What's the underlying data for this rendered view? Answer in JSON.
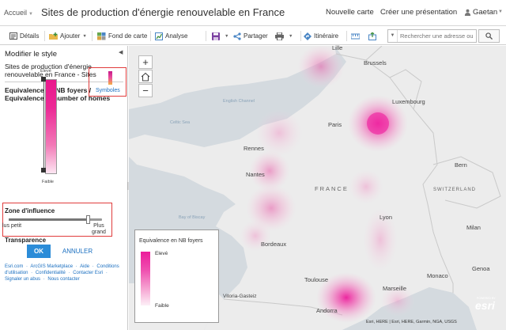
{
  "header": {
    "home_label": "Accueil",
    "title": "Sites de production d'énergie renouvelable en France",
    "new_map": "Nouvelle carte",
    "new_presentation": "Créer une présentation",
    "user": "Gaetan"
  },
  "toolbar": {
    "details": "Détails",
    "add": "Ajouter",
    "basemap": "Fond de carte",
    "analysis": "Analyse",
    "share": "Partager",
    "directions": "Itinéraire",
    "search_placeholder": "Rechercher une adresse ou"
  },
  "panel": {
    "title": "Modifier le style",
    "layer_name": "Sites de production d'énergie renouvelable en France - Sites",
    "attribute": "Equivalence en NB foyers / Equivalence in number of homes",
    "ramp_high": "Elevé",
    "ramp_low": "Faible",
    "symbols_label": "Symboles",
    "influence_title": "Zone d'influence",
    "influence_min": "lus petit",
    "influence_max_line1": "Plus",
    "influence_max_line2": "grand",
    "influence_value": 0.86,
    "transparency": "Transparence",
    "ok": "OK",
    "cancel": "ANNULER",
    "footer": [
      "Esri.com",
      "·",
      "ArcGIS Marketplace",
      "·",
      "Aide",
      "·",
      "Conditions d'utilisation",
      "·",
      "Confidentialité",
      "·",
      "Contacter Esri",
      "·",
      "Signaler un abus",
      "·",
      "Nous contacter"
    ]
  },
  "map": {
    "zoom_in": "+",
    "zoom_out": "−",
    "places": {
      "lille": "Lille",
      "brussels": "Brussels",
      "luxembourg": "Luxembourg",
      "paris": "Paris",
      "rennes": "Rennes",
      "nantes": "Nantes",
      "france": "FRANCE",
      "bordeaux": "Bordeaux",
      "toulouse": "Toulouse",
      "marseille": "Marseille",
      "lyon": "Lyon",
      "andorra": "Andorra",
      "milan": "Milan",
      "monaco": "Monaco",
      "genoa": "Genoa",
      "bern": "Bern",
      "switzerland": "SWITZERLAND",
      "vitoria": "Vitoria-Gasteiz",
      "english_channel": "English Channel",
      "celtic_sea": "Celtic Sea",
      "bay_of_biscay": "Bay of Biscay"
    },
    "legend": {
      "title": "Equivalence en NB foyers",
      "high": "Elevé",
      "low": "Faible"
    },
    "attribution": "Esri, HERE | Esri, HERE, Garmin, NGA, USGS",
    "esri_powered": "POWERED BY",
    "esri_logo": "esri"
  },
  "colors": {
    "accent": "#2b8cd8",
    "link": "#1a6fc0",
    "highlight_box": "#e03c3c",
    "heat": "#ec1c9b",
    "land": "#ececec",
    "water": "#d4dadf"
  }
}
